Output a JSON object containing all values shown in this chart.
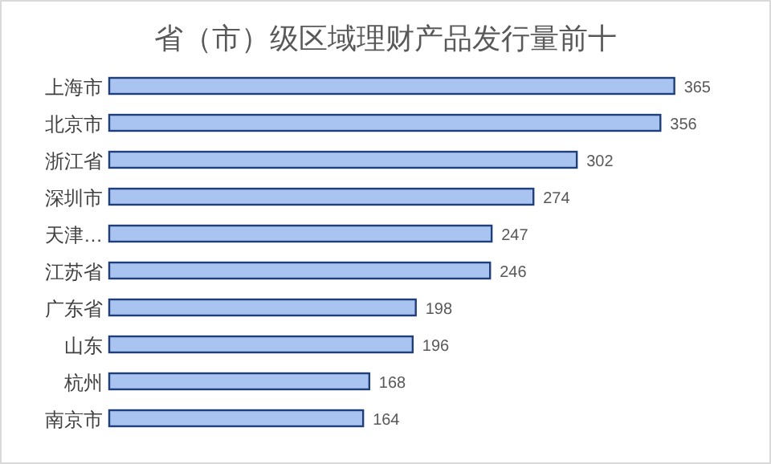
{
  "chart_data": {
    "type": "bar",
    "orientation": "horizontal",
    "title": "省（市）级区域理财产品发行量前十",
    "categories": [
      "上海市",
      "北京市",
      "浙江省",
      "深圳市",
      "天津…",
      "江苏省",
      "广东省",
      "山东",
      "杭州",
      "南京市"
    ],
    "values": [
      365,
      356,
      302,
      274,
      247,
      246,
      198,
      196,
      168,
      164
    ],
    "color": "#a9c4f0",
    "data_labels": true
  }
}
